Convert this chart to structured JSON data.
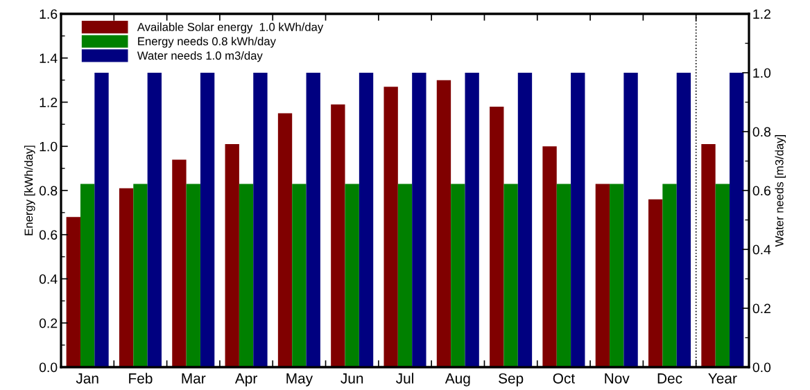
{
  "chart_data": {
    "type": "bar",
    "categories": [
      "Jan",
      "Feb",
      "Mar",
      "Apr",
      "May",
      "Jun",
      "Jul",
      "Aug",
      "Sep",
      "Oct",
      "Nov",
      "Dec",
      "Year"
    ],
    "ylabel": "Energy [kWh/day]",
    "y2label": "Water needs [m3/day]",
    "ylim": [
      0,
      1.6
    ],
    "yticks": [
      {
        "value": 0,
        "label": "0.0"
      },
      {
        "value": 0.1,
        "label": null
      },
      0.2,
      {
        "value": 0.3,
        "label": null
      },
      0.4,
      {
        "value": 0.5,
        "label": null
      },
      0.6,
      {
        "value": 0.7,
        "label": null
      },
      0.8,
      {
        "value": 0.9,
        "label": null
      },
      {
        "value": 1,
        "label": "1.0"
      },
      {
        "value": 1.1,
        "label": null
      },
      1.2,
      {
        "value": 1.3,
        "label": null
      },
      1.4,
      {
        "value": 1.5,
        "label": null
      },
      1.6
    ],
    "y2lim": [
      0,
      1.2
    ],
    "y2ticks": [
      {
        "value": 0,
        "label": "0.0"
      },
      {
        "value": 0.1,
        "label": null
      },
      0.2,
      {
        "value": 0.3,
        "label": null
      },
      0.4,
      {
        "value": 0.5,
        "label": null
      },
      0.6,
      {
        "value": 0.7,
        "label": null
      },
      0.8,
      {
        "value": 0.9,
        "label": null
      },
      {
        "value": 1,
        "label": "1.0"
      },
      {
        "value": 1.1,
        "label": null
      },
      1.2
    ],
    "series": [
      {
        "name": "Available Solar energy  1.0 kWh/day",
        "color": "#800000",
        "values": [
          0.68,
          0.81,
          0.94,
          1.01,
          1.15,
          1.19,
          1.27,
          1.3,
          1.18,
          1.0,
          0.83,
          0.76,
          1.01
        ]
      },
      {
        "name": "Energy needs 0.8 kWh/day",
        "color": "#008000",
        "values": [
          0.83,
          0.83,
          0.83,
          0.83,
          0.83,
          0.83,
          0.83,
          0.83,
          0.83,
          0.83,
          0.83,
          0.83,
          0.83
        ]
      },
      {
        "name": "Water needs 1.0 m3/day",
        "color": "#000080",
        "axis": "y2",
        "values": [
          1.0,
          1.0,
          1.0,
          1.0,
          1.0,
          1.0,
          1.0,
          1.0,
          1.0,
          1.0,
          1.0,
          1.0,
          1.0
        ]
      }
    ],
    "legend": "top left",
    "grid": false
  }
}
